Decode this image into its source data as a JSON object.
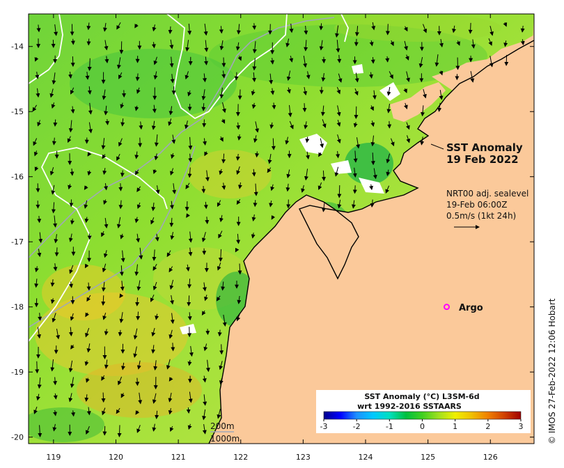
{
  "title": {
    "line1": "SST Anomaly",
    "line2": "19 Feb 2022"
  },
  "overlay": {
    "line1": "NRT00 adj. sealevel",
    "line2": "19-Feb 06:00Z",
    "line3": "0.5m/s (1kt 24h)"
  },
  "argo": {
    "label": "Argo",
    "lon": 125.3,
    "lat": -18.0,
    "color": "#ff00ff"
  },
  "contours": {
    "label_200": "200m",
    "label_1000": "1000m"
  },
  "colorbar": {
    "title_line1": "SST Anomaly (°C) L3SM-6d",
    "title_line2": "wrt 1992-2016 SSTAARS",
    "ticks": [
      "-3",
      "-2",
      "-1",
      "0",
      "1",
      "2",
      "3"
    ],
    "colors": [
      "#00008b",
      "#0000ff",
      "#1e90ff",
      "#00c8ff",
      "#00e0c0",
      "#00c040",
      "#40d020",
      "#a0e020",
      "#f0f000",
      "#f0c000",
      "#f08000",
      "#d04000",
      "#a00000"
    ]
  },
  "credit": "© IMOS 27-Feb-2022 12:06 Hobart",
  "axes": {
    "x_ticks": [
      "119",
      "120",
      "121",
      "122",
      "123",
      "124",
      "125",
      "126"
    ],
    "y_ticks": [
      "-14",
      "-15",
      "-16",
      "-17",
      "-18",
      "-19",
      "-20"
    ],
    "lon_range": [
      118.6,
      126.7
    ],
    "lat_range": [
      -20.1,
      -13.5
    ]
  },
  "colors": {
    "land": "#fbc99a",
    "ocean_base": "#7ed321",
    "coast": "#000000"
  }
}
